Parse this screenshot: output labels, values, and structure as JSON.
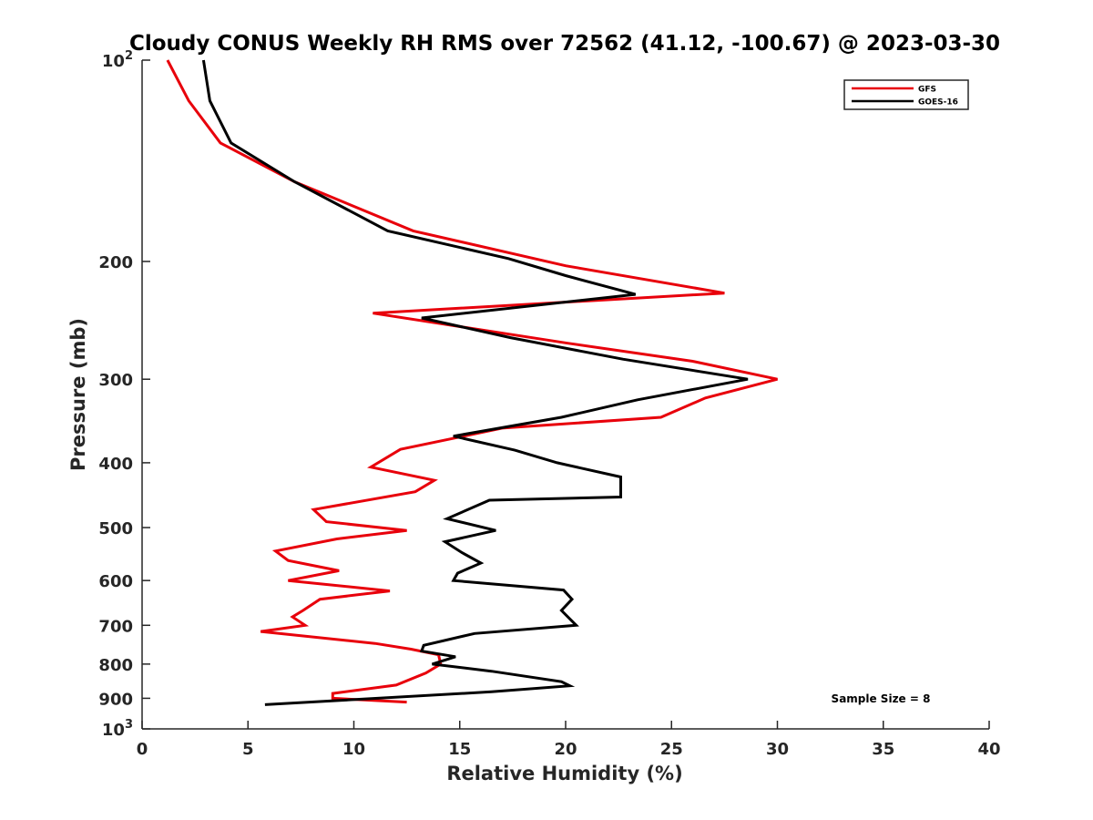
{
  "chart_data": {
    "type": "line",
    "title": "Cloudy CONUS Weekly RH RMS over 72562 (41.12, -100.67) @ 2023-03-30",
    "xlabel": "Relative Humidity (%)",
    "ylabel": "Pressure (mb)",
    "xlim": [
      0,
      40
    ],
    "ylim": [
      100,
      1000
    ],
    "y_scale": "log",
    "y_reversed": true,
    "x_ticks": [
      0,
      5,
      10,
      15,
      20,
      25,
      30,
      35,
      40
    ],
    "y_ticks": [
      {
        "value": 100,
        "label": "10",
        "sup": "2"
      },
      {
        "value": 200,
        "label": "200"
      },
      {
        "value": 300,
        "label": "300"
      },
      {
        "value": 400,
        "label": "400"
      },
      {
        "value": 500,
        "label": "500"
      },
      {
        "value": 600,
        "label": "600"
      },
      {
        "value": 700,
        "label": "700"
      },
      {
        "value": 800,
        "label": "800"
      },
      {
        "value": 900,
        "label": "900"
      },
      {
        "value": 1000,
        "label": "10",
        "sup": "3"
      }
    ],
    "grid": false,
    "legend_position": "top-right",
    "series": [
      {
        "name": "GFS",
        "color": "#e8000b",
        "points": [
          [
            1.2,
            100
          ],
          [
            2.2,
            115
          ],
          [
            3.7,
            133
          ],
          [
            7.2,
            152
          ],
          [
            12.8,
            180
          ],
          [
            20.0,
            203
          ],
          [
            27.5,
            223
          ],
          [
            10.9,
            239
          ],
          [
            20.1,
            265
          ],
          [
            26.0,
            282
          ],
          [
            30.0,
            300
          ],
          [
            26.6,
            320
          ],
          [
            24.5,
            342
          ],
          [
            17.0,
            355
          ],
          [
            12.2,
            382
          ],
          [
            10.8,
            406
          ],
          [
            13.8,
            425
          ],
          [
            12.9,
            442
          ],
          [
            8.1,
            470
          ],
          [
            8.7,
            490
          ],
          [
            12.5,
            505
          ],
          [
            9.2,
            520
          ],
          [
            6.3,
            542
          ],
          [
            6.9,
            560
          ],
          [
            9.3,
            580
          ],
          [
            6.9,
            600
          ],
          [
            11.7,
            622
          ],
          [
            8.4,
            640
          ],
          [
            7.6,
            665
          ],
          [
            7.1,
            680
          ],
          [
            7.7,
            700
          ],
          [
            5.6,
            715
          ],
          [
            11.0,
            745
          ],
          [
            12.7,
            760
          ],
          [
            14.0,
            775
          ],
          [
            14.1,
            800
          ],
          [
            13.4,
            825
          ],
          [
            12.0,
            860
          ],
          [
            9.0,
            885
          ],
          [
            9.0,
            900
          ],
          [
            12.5,
            912
          ]
        ]
      },
      {
        "name": "GOES-16",
        "color": "#000000",
        "points": [
          [
            2.9,
            100
          ],
          [
            3.2,
            115
          ],
          [
            4.2,
            133
          ],
          [
            7.2,
            152
          ],
          [
            11.6,
            180
          ],
          [
            17.3,
            198
          ],
          [
            20.0,
            210
          ],
          [
            23.3,
            224
          ],
          [
            13.2,
            243
          ],
          [
            17.4,
            260
          ],
          [
            22.7,
            280
          ],
          [
            28.6,
            300
          ],
          [
            23.4,
            322
          ],
          [
            19.8,
            342
          ],
          [
            14.7,
            365
          ],
          [
            17.6,
            383
          ],
          [
            19.6,
            400
          ],
          [
            22.6,
            420
          ],
          [
            22.6,
            450
          ],
          [
            16.4,
            455
          ],
          [
            14.4,
            485
          ],
          [
            16.7,
            505
          ],
          [
            14.3,
            525
          ],
          [
            15.1,
            545
          ],
          [
            16.0,
            565
          ],
          [
            14.9,
            585
          ],
          [
            14.7,
            600
          ],
          [
            19.9,
            620
          ],
          [
            20.3,
            640
          ],
          [
            19.8,
            665
          ],
          [
            20.5,
            700
          ],
          [
            15.7,
            720
          ],
          [
            13.3,
            750
          ],
          [
            13.2,
            765
          ],
          [
            14.8,
            780
          ],
          [
            13.7,
            800
          ],
          [
            16.5,
            820
          ],
          [
            19.8,
            850
          ],
          [
            20.2,
            862
          ],
          [
            16.5,
            880
          ],
          [
            5.8,
            920
          ]
        ]
      }
    ],
    "annotations": [
      {
        "text": "Sample Size = 8"
      }
    ]
  }
}
